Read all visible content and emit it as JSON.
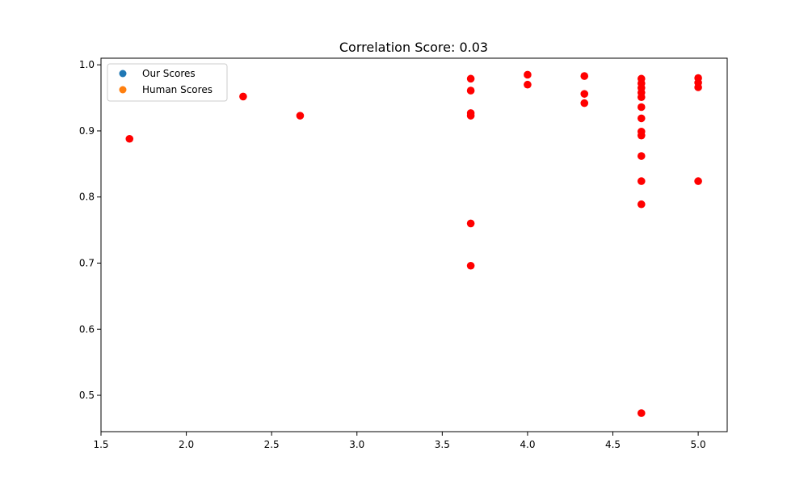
{
  "chart_data": {
    "type": "scatter",
    "title": "Correlation Score: 0.03",
    "xlabel": "",
    "ylabel": "",
    "xlim": [
      1.5,
      5.17
    ],
    "ylim": [
      0.445,
      1.01
    ],
    "xticks": [
      "1.5",
      "2.0",
      "2.5",
      "3.0",
      "3.5",
      "4.0",
      "4.5",
      "5.0"
    ],
    "yticks": [
      "0.5",
      "0.6",
      "0.7",
      "0.8",
      "0.9",
      "1.0"
    ],
    "grid": false,
    "legend_position": "top-left",
    "series": [
      {
        "name": "Our Scores",
        "color": "#1f77b4",
        "points": []
      },
      {
        "name": "Human Scores",
        "color": "#ff7f0e",
        "points": []
      }
    ],
    "highlight_points": {
      "color": "#ff0000",
      "points": [
        [
          1.667,
          0.888
        ],
        [
          2.333,
          0.952
        ],
        [
          2.667,
          0.923
        ],
        [
          3.667,
          0.979
        ],
        [
          3.667,
          0.961
        ],
        [
          3.667,
          0.927
        ],
        [
          3.667,
          0.923
        ],
        [
          3.667,
          0.76
        ],
        [
          3.667,
          0.696
        ],
        [
          4.0,
          0.985
        ],
        [
          4.0,
          0.97
        ],
        [
          4.333,
          0.983
        ],
        [
          4.333,
          0.956
        ],
        [
          4.333,
          0.942
        ],
        [
          4.667,
          0.979
        ],
        [
          4.667,
          0.972
        ],
        [
          4.667,
          0.965
        ],
        [
          4.667,
          0.958
        ],
        [
          4.667,
          0.951
        ],
        [
          4.667,
          0.936
        ],
        [
          4.667,
          0.919
        ],
        [
          4.667,
          0.899
        ],
        [
          4.667,
          0.893
        ],
        [
          4.667,
          0.862
        ],
        [
          4.667,
          0.824
        ],
        [
          4.667,
          0.789
        ],
        [
          4.667,
          0.473
        ],
        [
          5.0,
          0.98
        ],
        [
          5.0,
          0.973
        ],
        [
          5.0,
          0.966
        ],
        [
          5.0,
          0.824
        ]
      ]
    }
  }
}
